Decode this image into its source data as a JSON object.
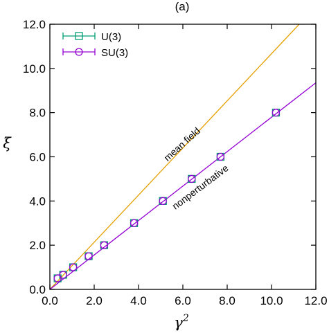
{
  "chart_data": {
    "type": "line",
    "title": "(a)",
    "xlabel": "γ",
    "xlabel_superscript": "2",
    "ylabel": "ξ",
    "xlim": [
      0,
      12
    ],
    "ylim": [
      0,
      12
    ],
    "xticks": [
      "0.0",
      "2.0",
      "4.0",
      "6.0",
      "8.0",
      "10.0",
      "12.0"
    ],
    "yticks": [
      "0.0",
      "2.0",
      "4.0",
      "6.0",
      "8.0",
      "10.0",
      "12.0"
    ],
    "grid": false,
    "legend_position": "top-left",
    "series": [
      {
        "name": "U(3)",
        "marker": "square",
        "color": "#009e73",
        "x": [
          0.35,
          0.6,
          1.05,
          1.75,
          2.45,
          3.8,
          5.1,
          6.4,
          7.7,
          10.2
        ],
        "y": [
          0.5,
          0.66,
          1.0,
          1.5,
          2.0,
          3.0,
          4.0,
          5.0,
          6.0,
          8.0
        ]
      },
      {
        "name": "SU(3)",
        "marker": "circle",
        "color": "#9400d3",
        "x": [
          0.35,
          0.6,
          1.05,
          1.75,
          2.45,
          3.8,
          5.1,
          6.4,
          7.7,
          10.2
        ],
        "y": [
          0.5,
          0.66,
          1.0,
          1.5,
          2.0,
          3.0,
          4.0,
          5.0,
          6.0,
          8.0
        ]
      }
    ],
    "lines": [
      {
        "label": "mean field",
        "color": "#e6a000",
        "x": [
          0,
          12
        ],
        "y": [
          0,
          12.8
        ]
      },
      {
        "label": "nonperturbative",
        "color": "#9400d3",
        "x": [
          0,
          12
        ],
        "y": [
          0,
          9.35
        ]
      }
    ]
  }
}
